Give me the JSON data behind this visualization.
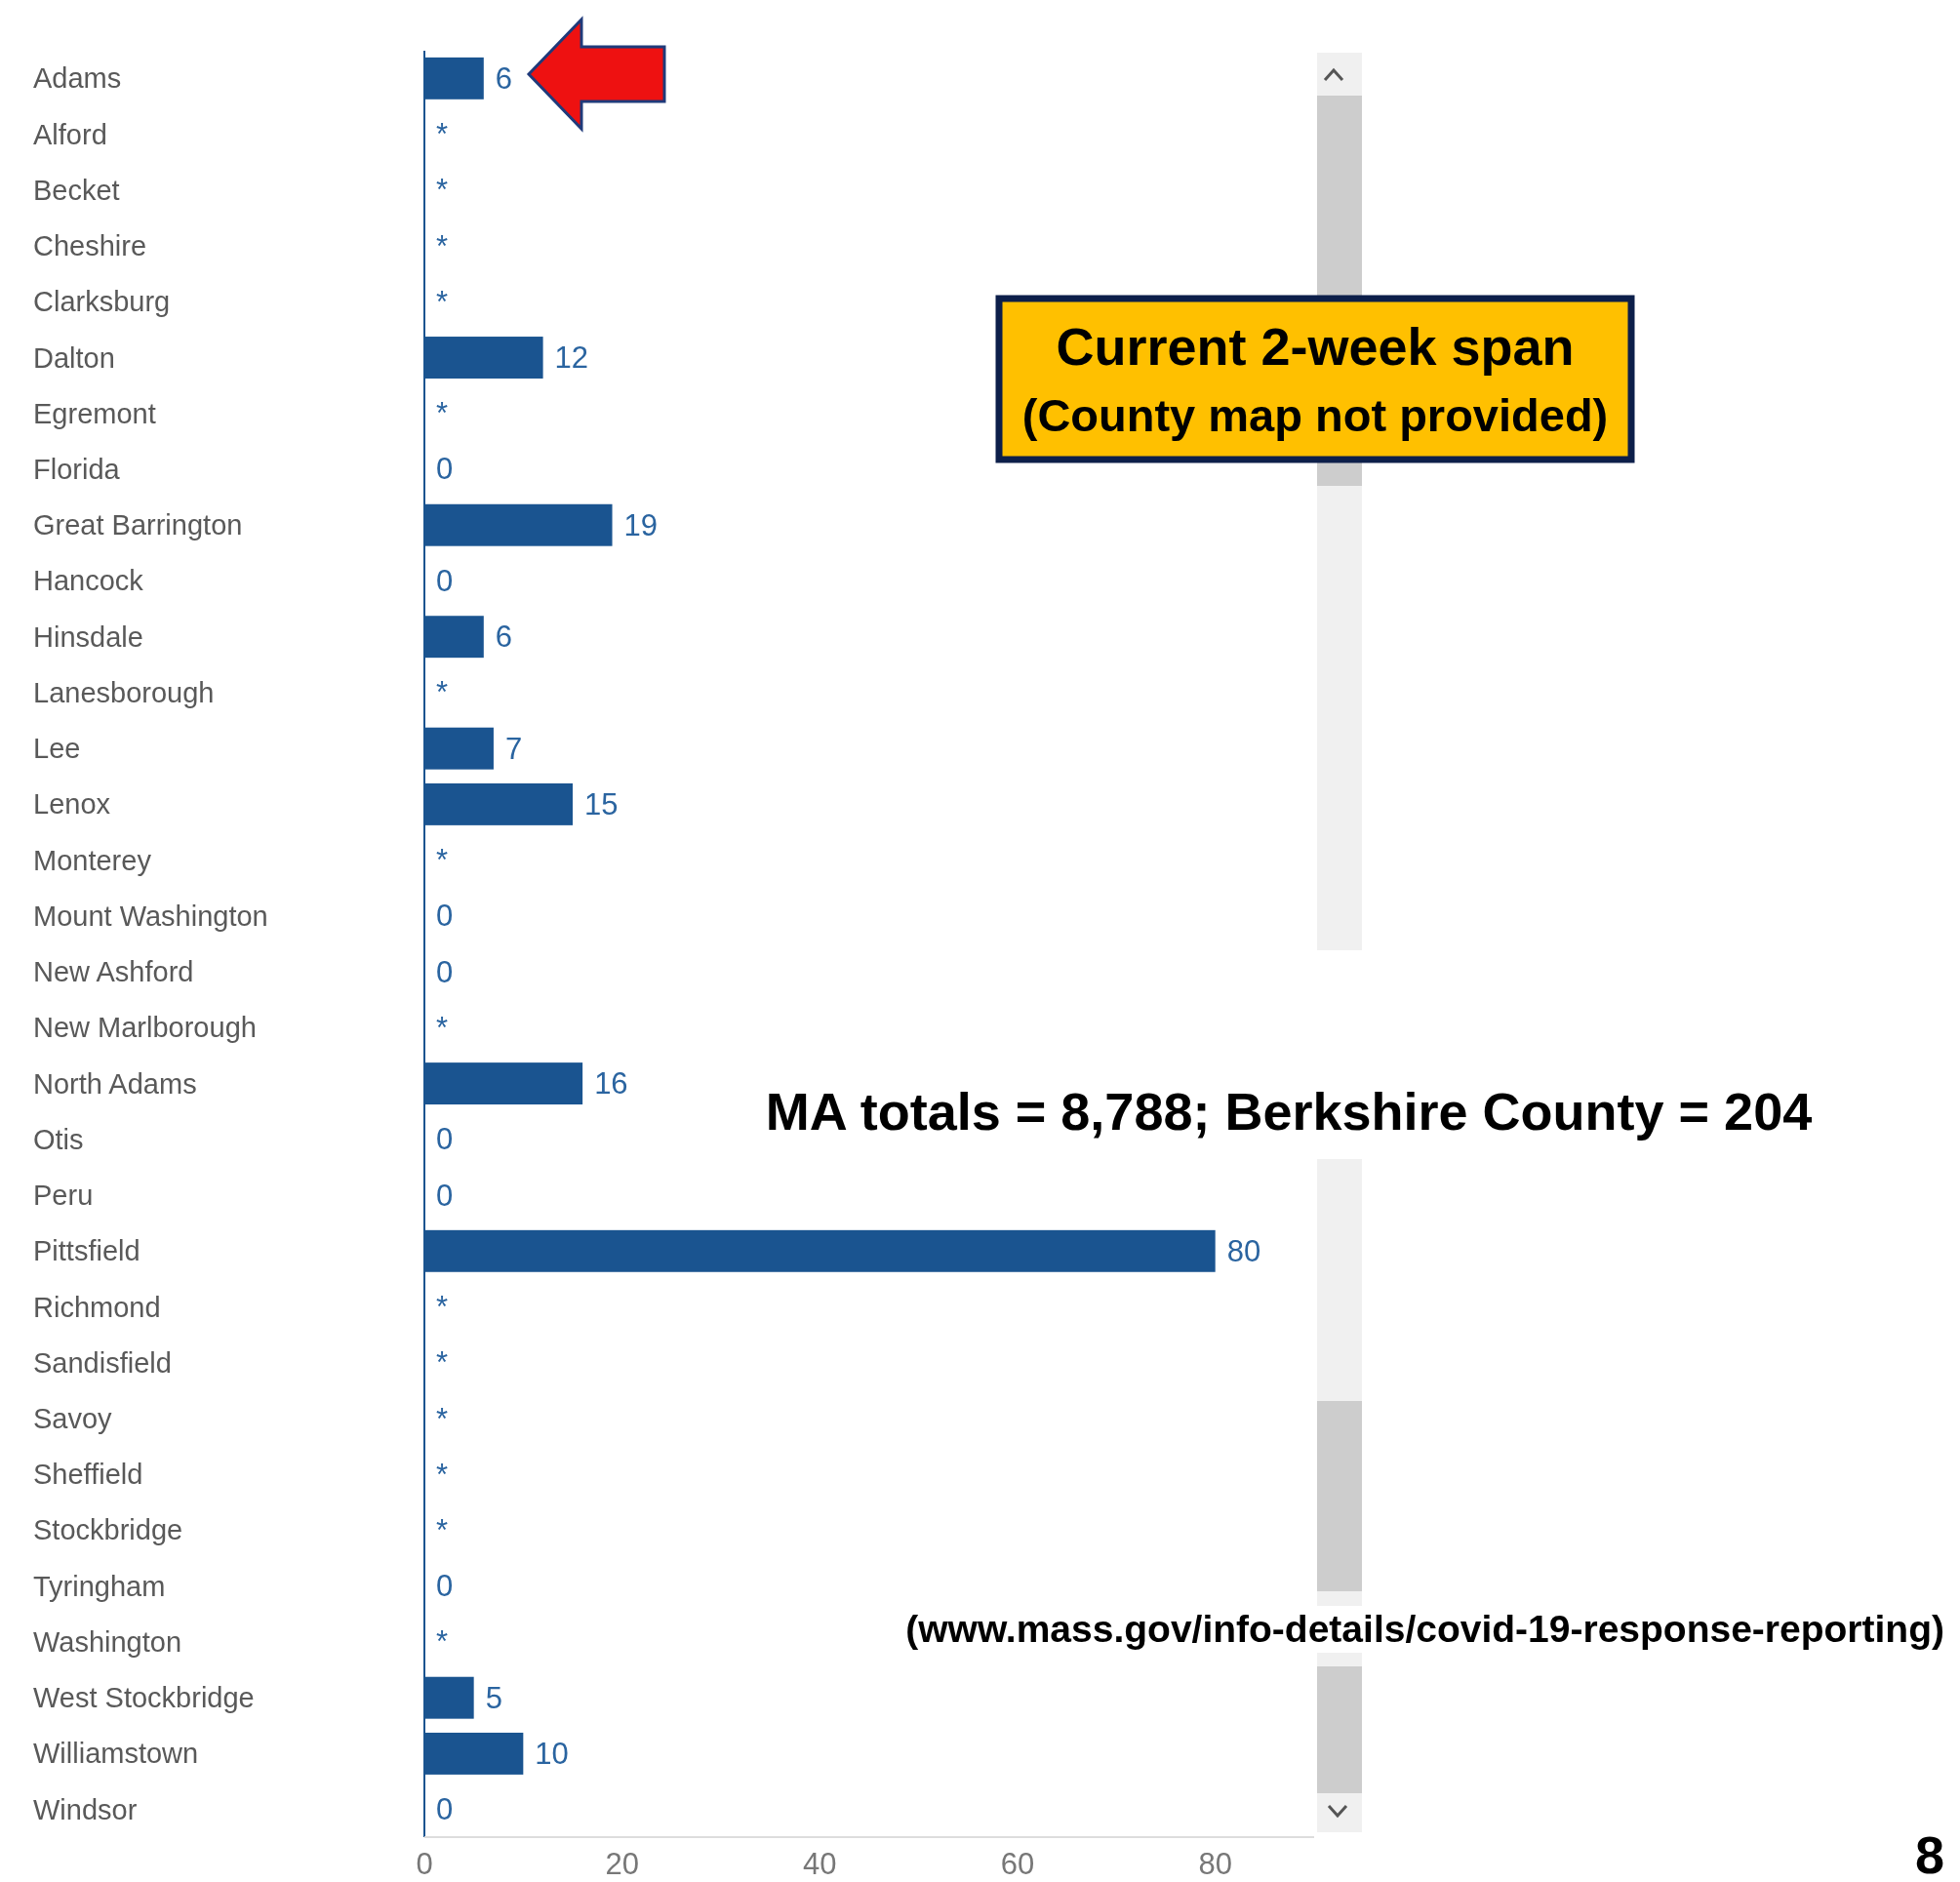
{
  "chart_data": {
    "type": "bar",
    "orientation": "horizontal",
    "categories": [
      "Adams",
      "Alford",
      "Becket",
      "Cheshire",
      "Clarksburg",
      "Dalton",
      "Egremont",
      "Florida",
      "Great Barrington",
      "Hancock",
      "Hinsdale",
      "Lanesborough",
      "Lee",
      "Lenox",
      "Monterey",
      "Mount Washington",
      "New Ashford",
      "New Marlborough",
      "North Adams",
      "Otis",
      "Peru",
      "Pittsfield",
      "Richmond",
      "Sandisfield",
      "Savoy",
      "Sheffield",
      "Stockbridge",
      "Tyringham",
      "Washington",
      "West Stockbridge",
      "Williamstown",
      "Windsor"
    ],
    "values": [
      6,
      null,
      null,
      null,
      null,
      12,
      null,
      0,
      19,
      0,
      6,
      null,
      7,
      15,
      null,
      0,
      0,
      null,
      16,
      0,
      0,
      80,
      null,
      null,
      null,
      null,
      null,
      0,
      null,
      5,
      10,
      0
    ],
    "value_labels": [
      "6",
      "*",
      "*",
      "*",
      "*",
      "12",
      "*",
      "0",
      "19",
      "0",
      "6",
      "*",
      "7",
      "15",
      "*",
      "0",
      "0",
      "*",
      "16",
      "0",
      "0",
      "80",
      "*",
      "*",
      "*",
      "*",
      "*",
      "0",
      "*",
      "5",
      "10",
      "0"
    ],
    "color": "#1a5490",
    "xlim": [
      0,
      90
    ],
    "xticks": [
      0,
      20,
      40,
      60,
      80
    ],
    "grid": false,
    "annotations": [
      "Current 2-week span",
      "(County map not provided)",
      "MA totals = 8,788; Berkshire County = 204",
      "(www.mass.gov/info-details/covid-19-response-reporting)",
      "8"
    ]
  }
}
